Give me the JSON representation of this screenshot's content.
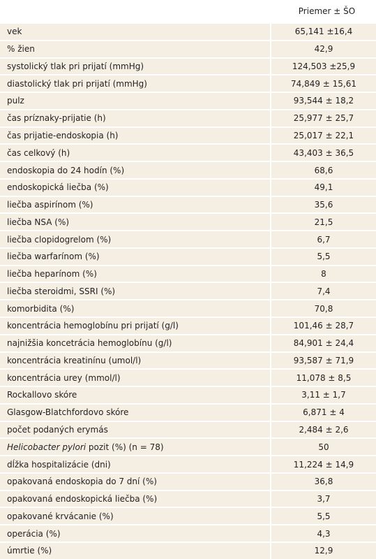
{
  "table": {
    "header": "Priemer ± ŠO",
    "rows": [
      {
        "label": "vek",
        "value": "65,141 ±16,4"
      },
      {
        "label": "% žien",
        "value": "42,9"
      },
      {
        "label": "systolický tlak pri prijatí (mmHg)",
        "value": "124,503 ±25,9"
      },
      {
        "label": "diastolický tlak pri prijatí (mmHg)",
        "value": "74,849 ± 15,61"
      },
      {
        "label": "pulz",
        "value": "93,544 ± 18,2"
      },
      {
        "label": "čas príznaky-prijatie (h)",
        "value": "25,977 ± 25,7"
      },
      {
        "label": "čas prijatie-endoskopia (h)",
        "value": "25,017 ± 22,1"
      },
      {
        "label": "čas celkový (h)",
        "value": "43,403 ± 36,5"
      },
      {
        "label": "endoskopia do 24 hodín (%)",
        "value": "68,6"
      },
      {
        "label": "endoskopická liečba (%)",
        "value": "49,1"
      },
      {
        "label": "liečba aspirínom (%)",
        "value": "35,6"
      },
      {
        "label": "liečba NSA (%)",
        "value": "21,5"
      },
      {
        "label": "liečba clopidogrelom (%)",
        "value": "6,7"
      },
      {
        "label": "liečba warfarínom (%)",
        "value": "5,5"
      },
      {
        "label": "liečba heparínom (%)",
        "value": "8"
      },
      {
        "label": "liečba steroidmi, SSRI (%)",
        "value": "7,4"
      },
      {
        "label": "komorbidita (%)",
        "value": "70,8"
      },
      {
        "label": "koncentrácia hemoglobínu pri prijatí (g/l)",
        "value": "101,46 ± 28,7"
      },
      {
        "label": "najnižšia koncetrácia hemoglobínu (g/l)",
        "value": "84,901 ± 24,4"
      },
      {
        "label": "koncentrácia kreatinínu (umol/l)",
        "value": "93,587 ± 71,9"
      },
      {
        "label": "koncentrácia urey (mmol/l)",
        "value": "11,078 ± 8,5"
      },
      {
        "label": "Rockallovo skóre",
        "value": "3,11 ± 1,7"
      },
      {
        "label": "Glasgow-Blatchfordovo skóre",
        "value": "6,871 ± 4"
      },
      {
        "label": "počet podaných erymás",
        "value": "2,484 ± 2,6"
      },
      {
        "label_italic": "Helicobacter pylori",
        "label": "pozit (%) (n = 78)",
        "value": "50"
      },
      {
        "label": "dĺžka hospitalizácie (dni)",
        "value": "11,224 ± 14,9"
      },
      {
        "label": "opakovaná endoskopia do 7 dní (%)",
        "value": "36,8"
      },
      {
        "label": "opakovaná endoskopická liečba (%)",
        "value": "3,7"
      },
      {
        "label": "opakované krvácanie (%)",
        "value": "5,5"
      },
      {
        "label": "operácia (%)",
        "value": "4,3"
      },
      {
        "label": "úmrtie (%)",
        "value": "12,9"
      }
    ]
  }
}
